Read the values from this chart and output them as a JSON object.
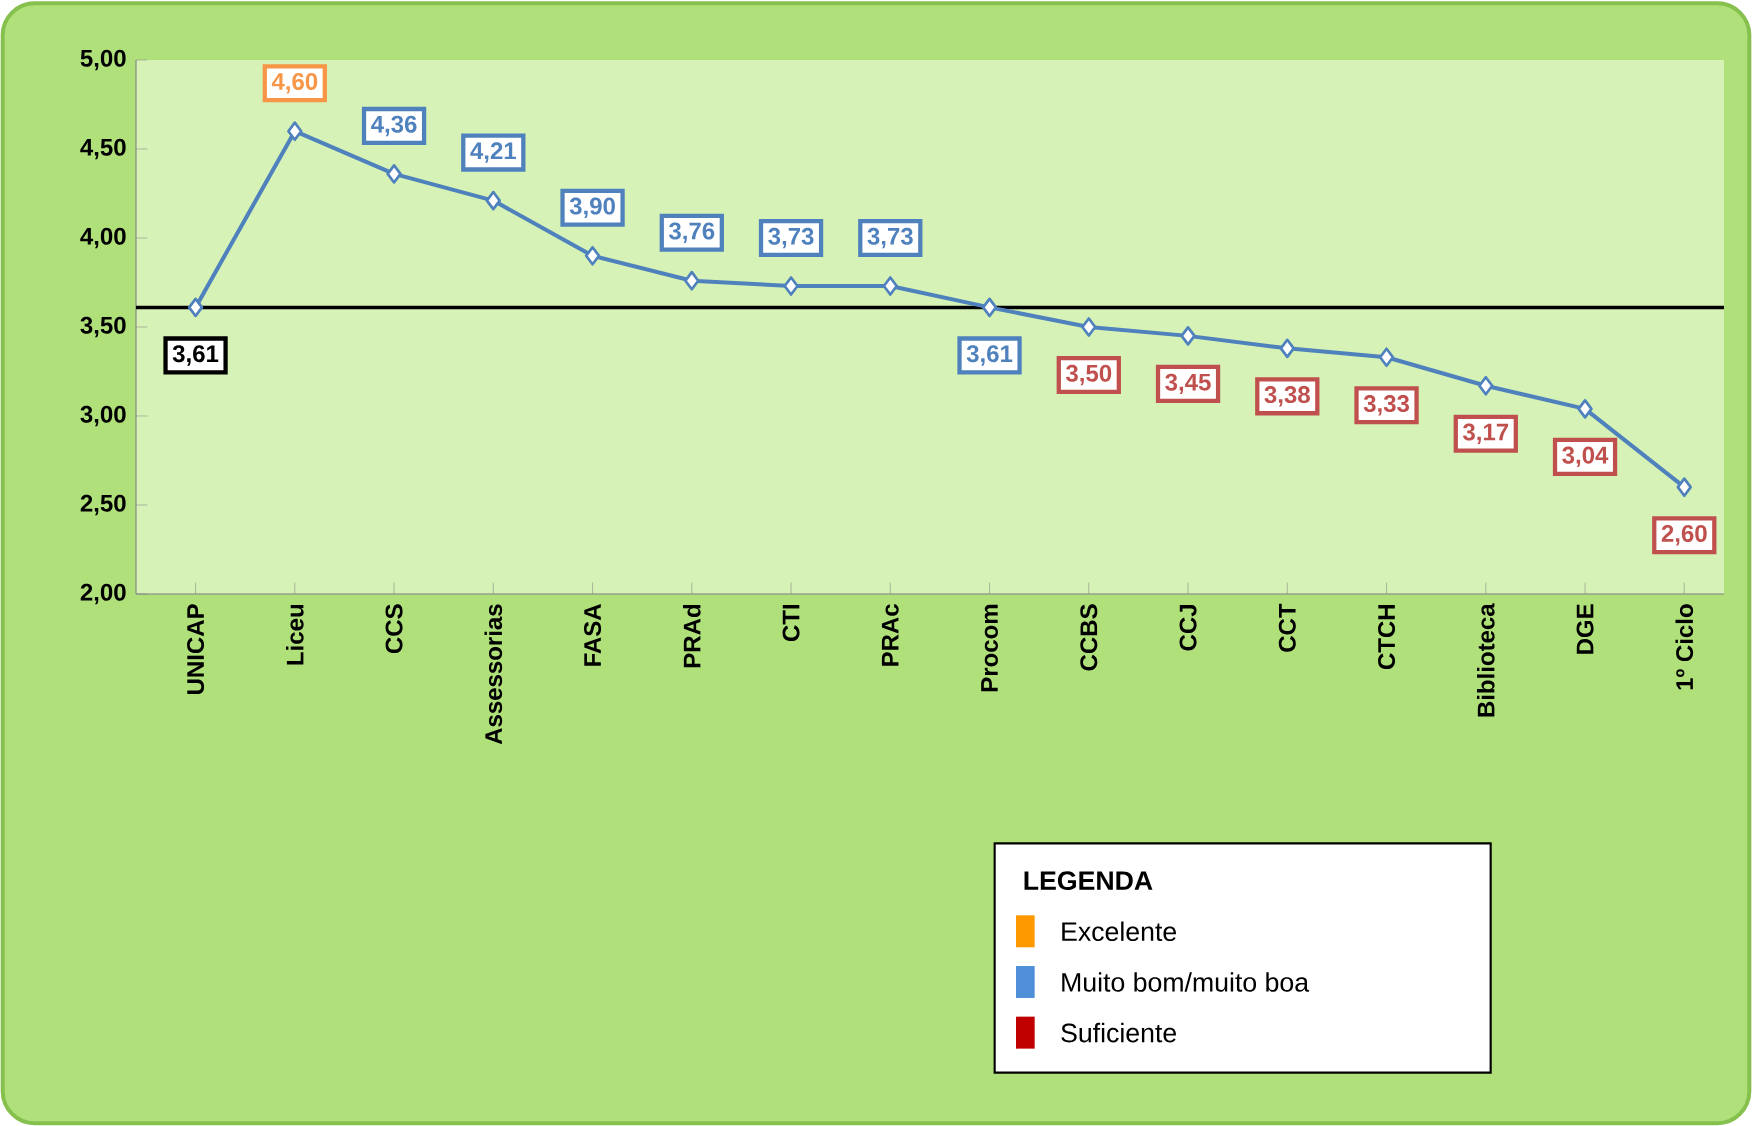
{
  "chart_data": {
    "type": "line",
    "categories": [
      "UNICAP",
      "Liceu",
      "CCS",
      "Assessorias",
      "FASA",
      "PRAd",
      "CTI",
      "PRAc",
      "Procom",
      "CCBS",
      "CCJ",
      "CCT",
      "CTCH",
      "Biblioteca",
      "DGE",
      "1º Ciclo"
    ],
    "series": [
      {
        "color": "#4f81bd",
        "values": [
          3.61,
          4.6,
          4.36,
          4.21,
          3.9,
          3.76,
          3.73,
          3.73,
          3.61,
          3.5,
          3.45,
          3.38,
          3.33,
          3.17,
          3.04,
          2.6
        ],
        "value_labels": [
          "3,61",
          "4,60",
          "4,36",
          "4,21",
          "3,90",
          "3,76",
          "3,73",
          "3,73",
          "3,61",
          "3,50",
          "3,45",
          "3,38",
          "3,33",
          "3,17",
          "3,04",
          "2,60"
        ],
        "colors": [
          "#000000",
          "#f79646",
          "#4f81bd",
          "#4f81bd",
          "#4f81bd",
          "#4f81bd",
          "#4f81bd",
          "#4f81bd",
          "#4f81bd",
          "#c0504d",
          "#c0504d",
          "#c0504d",
          "#c0504d",
          "#c0504d",
          "#c0504d",
          "#c0504d"
        ]
      }
    ],
    "ylim": [
      2,
      5
    ],
    "yticks": [
      {
        "value": 2,
        "label": "2,00"
      },
      {
        "value": 2.5,
        "label": "2,50"
      },
      {
        "value": 3,
        "label": "3,00"
      },
      {
        "value": 3.5,
        "label": "3,50"
      },
      {
        "value": 4,
        "label": "4,00"
      },
      {
        "value": 4.5,
        "label": "4,50"
      },
      {
        "value": 5,
        "label": "5,00"
      }
    ],
    "ref_lines": [
      {
        "axis": "y",
        "value": 3.61,
        "color": "#000000"
      }
    ],
    "marker": "diamond",
    "legend_title": "LEGENDA",
    "annotations": [
      "Excelente",
      "Muito bom/muito boa",
      "Suficiente"
    ]
  }
}
